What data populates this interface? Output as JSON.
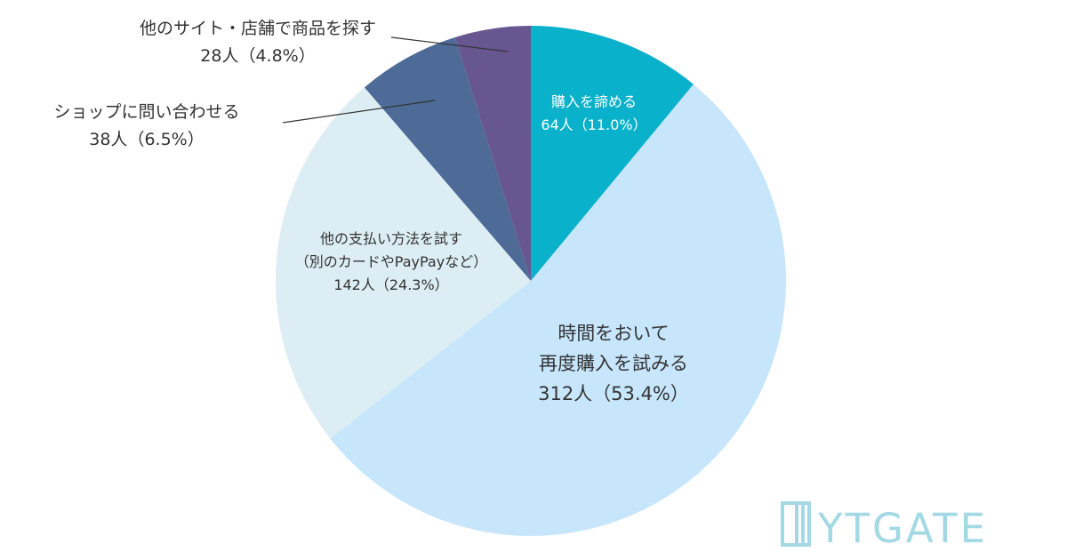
{
  "chart_data": {
    "type": "pie",
    "start_angle_deg": 0,
    "direction": "clockwise",
    "slices": [
      {
        "label_lines": [
          "購入を諦める",
          "64人（11.0%）"
        ],
        "count": 64,
        "percent": 11.0,
        "color": "#0AB1CB",
        "text_color": "#ffffff"
      },
      {
        "label_lines": [
          "時間をおいて",
          "再度購入を試みる",
          "312人（53.4%）"
        ],
        "count": 312,
        "percent": 53.4,
        "color": "#C7E6FC",
        "text_color": "#333333"
      },
      {
        "label_lines": [
          "他の支払い方法を試す",
          "（別のカードやPayPayなど）",
          "142人（24.3%）"
        ],
        "count": 142,
        "percent": 24.3,
        "color": "#DCEDF4",
        "text_color": "#333333"
      },
      {
        "label_lines": [
          "ショップに問い合わせる",
          "38人（6.5%）"
        ],
        "count": 38,
        "percent": 6.5,
        "color": "#4D6B96",
        "text_color": "#333333",
        "outside": true
      },
      {
        "label_lines": [
          "他のサイト・店舗で商品を探す",
          "28人（4.8%）"
        ],
        "count": 28,
        "percent": 4.8,
        "color": "#675690",
        "text_color": "#333333",
        "outside": true
      }
    ]
  },
  "logo": {
    "text": "YTGATE",
    "color": "#A3D9E4"
  }
}
